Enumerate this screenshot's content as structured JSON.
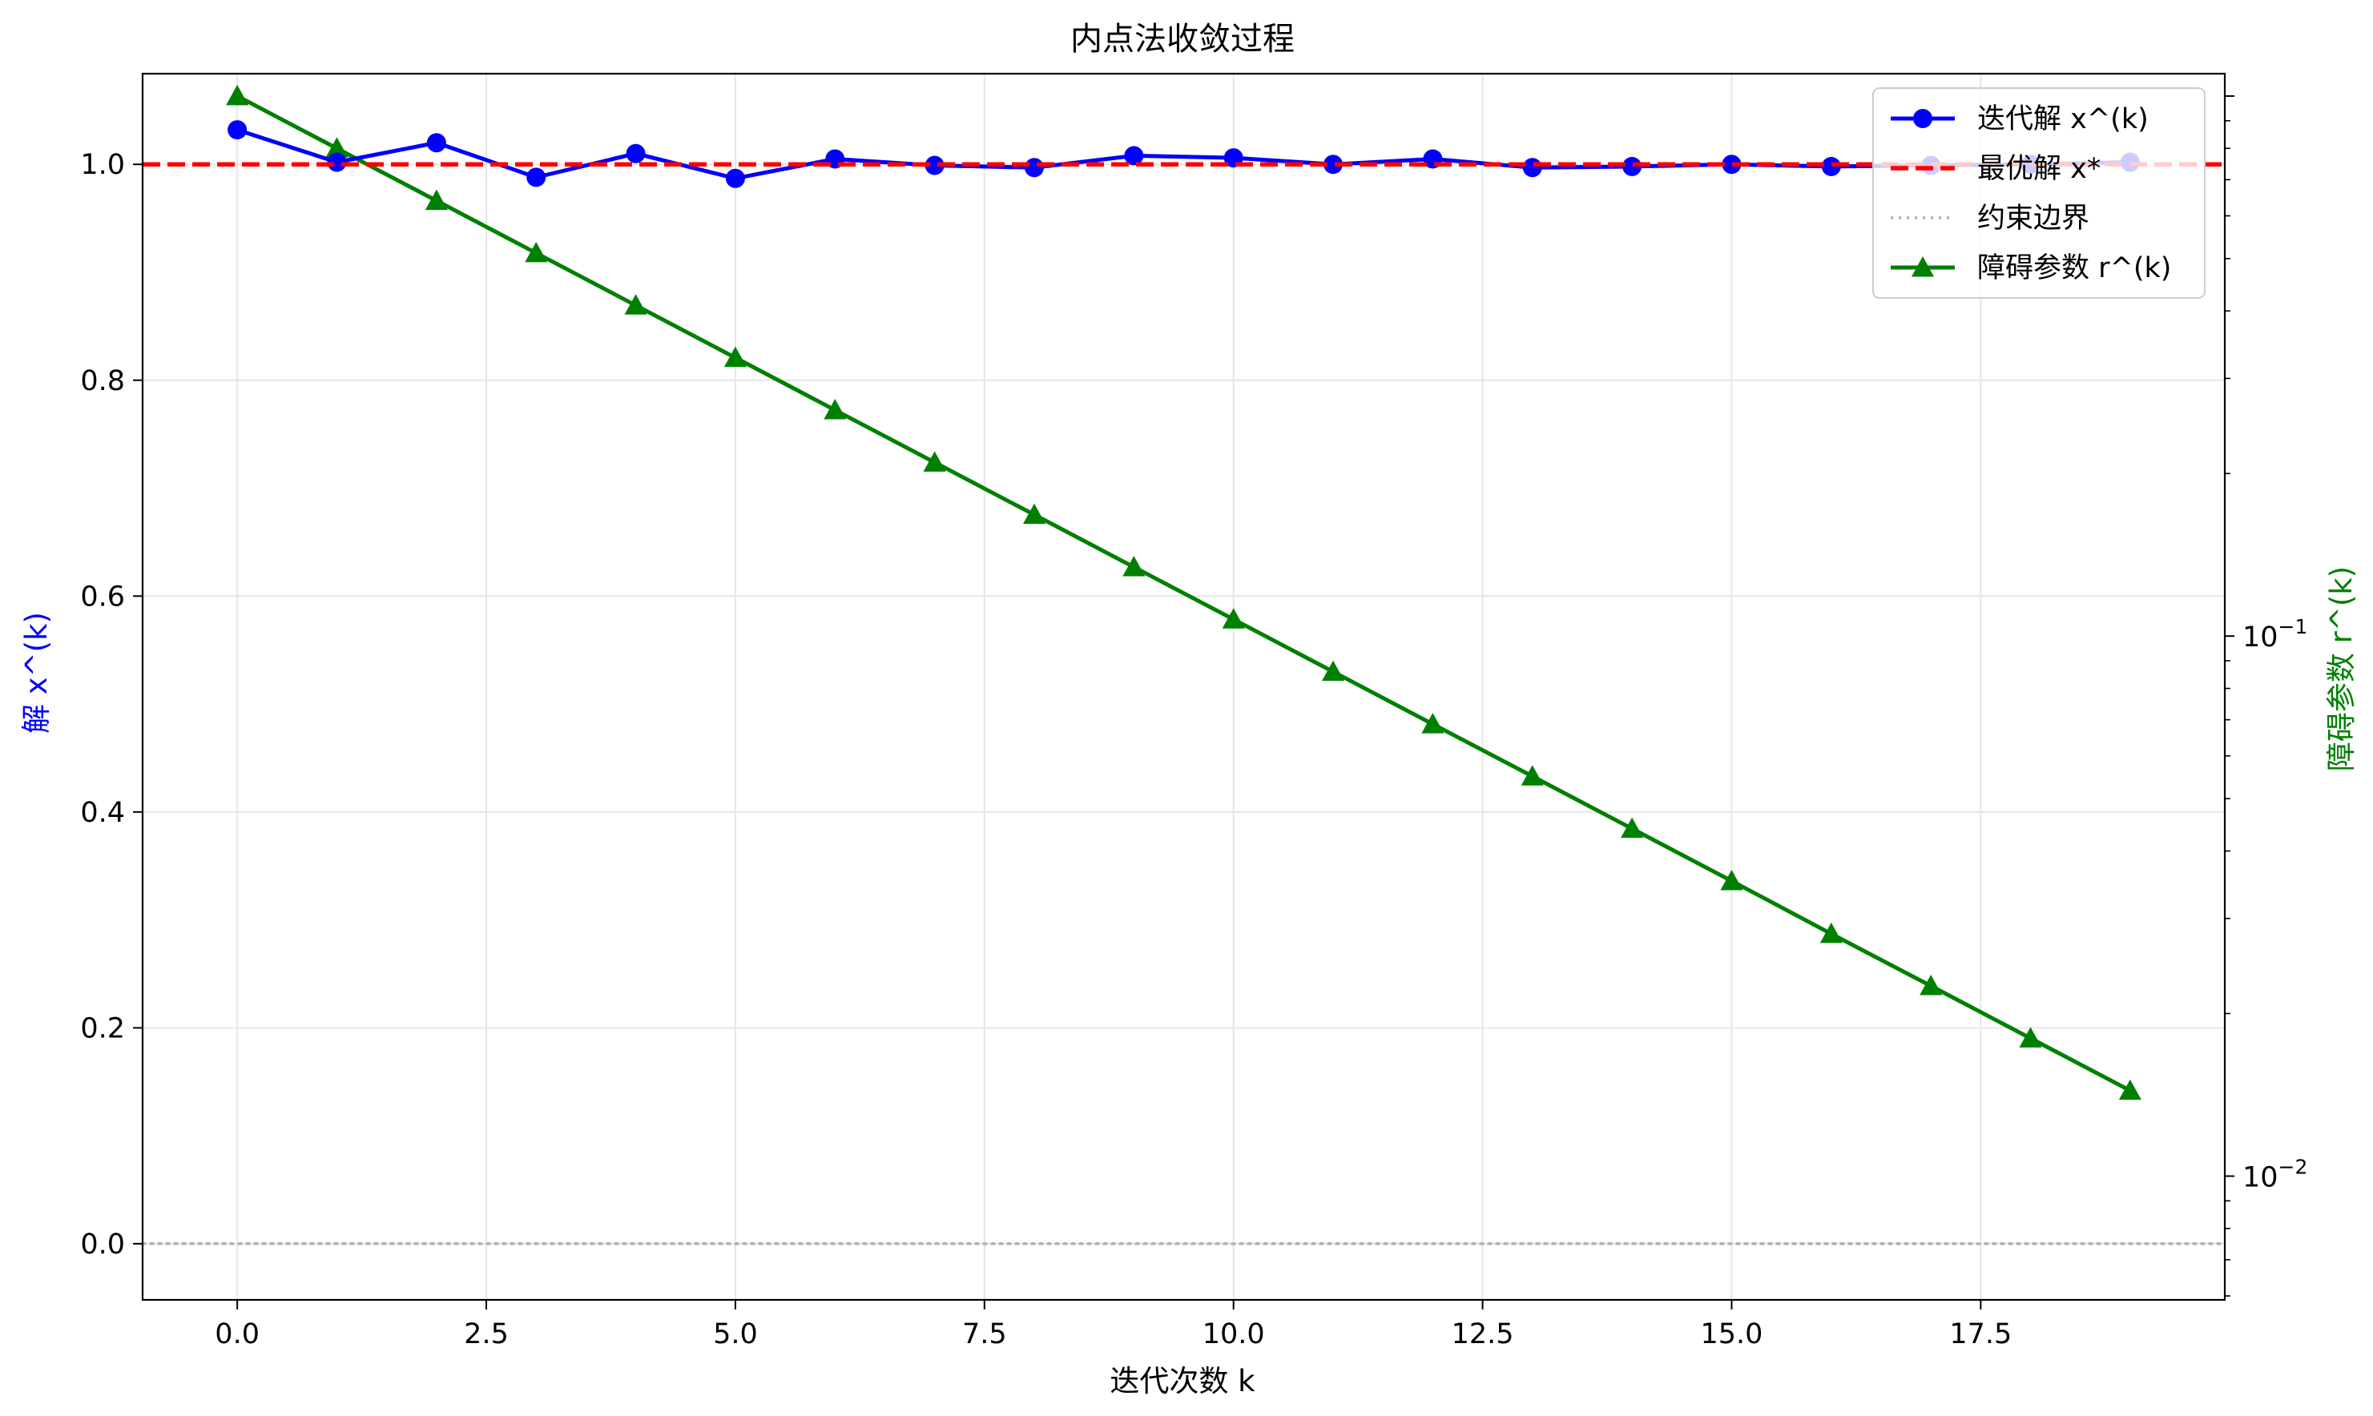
{
  "chart_data": {
    "type": "line",
    "title": "内点法收敛过程",
    "xlabel": "迭代次数 k",
    "ylabel": "解 x^(k)",
    "ylabel_right": "障碍参数 r^(k)",
    "xlim": [
      -0.95,
      19.95
    ],
    "ylim": [
      -0.052,
      1.084
    ],
    "ylim_right": [
      0.0059,
      1.1
    ],
    "yscale_right": "log",
    "x_ticks": [
      "0.0",
      "2.5",
      "5.0",
      "7.5",
      "10.0",
      "12.5",
      "15.0",
      "17.5"
    ],
    "x_tick_values": [
      0,
      2.5,
      5,
      7.5,
      10,
      12.5,
      15,
      17.5
    ],
    "y_ticks": [
      "0.0",
      "0.2",
      "0.4",
      "0.6",
      "0.8",
      "1.0"
    ],
    "y_tick_values": [
      0,
      0.2,
      0.4,
      0.6,
      0.8,
      1.0
    ],
    "y_right_ticks": [
      {
        "base": "10",
        "exp": "−2",
        "value": 0.01
      },
      {
        "base": "10",
        "exp": "−1",
        "value": 0.1
      }
    ],
    "grid": true,
    "legend_position": "upper-right",
    "colors": {
      "iterate": "#0000ff",
      "optimal": "#ff0000",
      "boundary": "#b0b0b0",
      "barrier": "#008000",
      "grid": "#e6e6e6",
      "ylabel": "#0000ff",
      "ylabel_right": "#008000"
    },
    "series": [
      {
        "name": "迭代解 x^(k)",
        "axis": "left",
        "marker": "circle",
        "x": [
          0,
          1,
          2,
          3,
          4,
          5,
          6,
          7,
          8,
          9,
          10,
          11,
          12,
          13,
          14,
          15,
          16,
          17,
          18,
          19
        ],
        "values": [
          1.032,
          1.002,
          1.02,
          0.988,
          1.01,
          0.987,
          1.005,
          0.999,
          0.997,
          1.008,
          1.006,
          1.0,
          1.005,
          0.997,
          0.998,
          1.0,
          0.998,
          0.999,
          1.0,
          1.002
        ]
      },
      {
        "name": "最优解 x*",
        "axis": "left",
        "style": "dashed",
        "value": 1.0
      },
      {
        "name": "约束边界",
        "axis": "left",
        "style": "dotted",
        "value": 0.0
      },
      {
        "name": "障碍参数 r^(k)",
        "axis": "right",
        "marker": "triangle",
        "x": [
          0,
          1,
          2,
          3,
          4,
          5,
          6,
          7,
          8,
          9,
          10,
          11,
          12,
          13,
          14,
          15,
          16,
          17,
          18,
          19
        ],
        "values": [
          1.0,
          0.8,
          0.64,
          0.512,
          0.4096,
          0.3277,
          0.2621,
          0.2097,
          0.1678,
          0.1342,
          0.1074,
          0.0859,
          0.0687,
          0.055,
          0.044,
          0.0352,
          0.0281,
          0.0225,
          0.018,
          0.0144
        ]
      }
    ]
  }
}
